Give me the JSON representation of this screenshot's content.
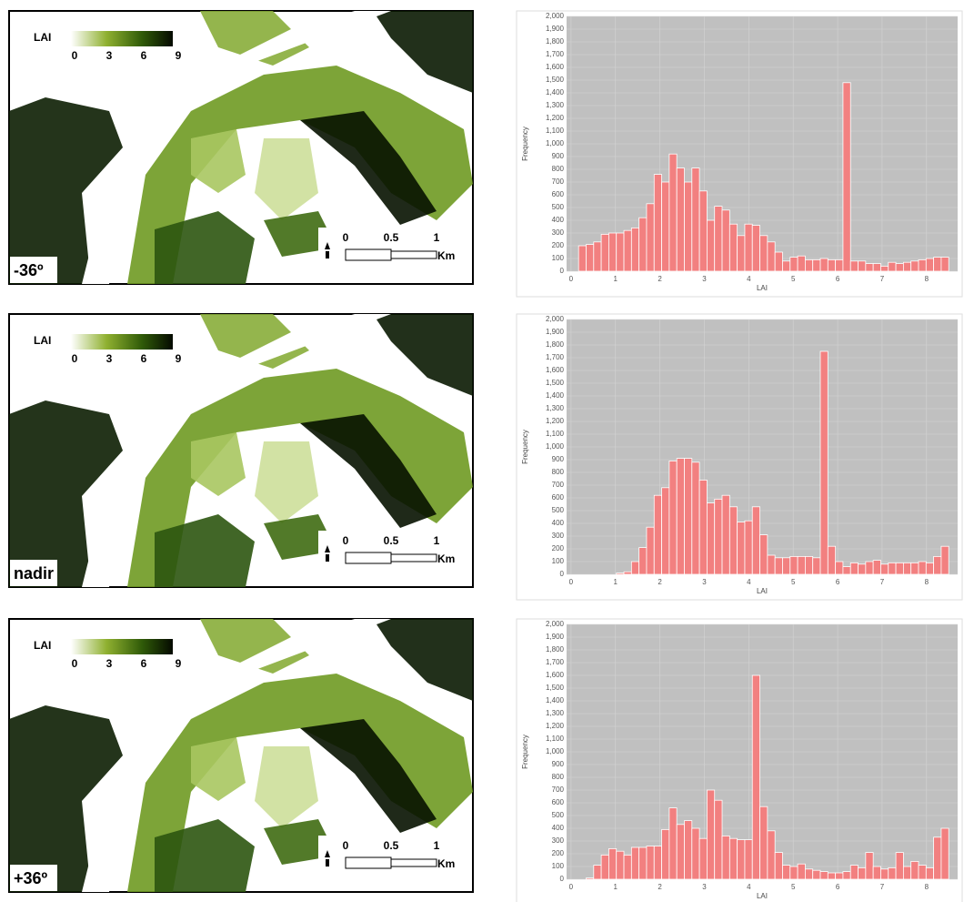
{
  "maps": {
    "legend_title": "LAI",
    "legend_ticks": [
      0,
      3,
      6,
      9
    ],
    "scale_ticks": [
      0,
      0.5,
      1
    ],
    "scale_unit": "Km",
    "labels": [
      "-36º",
      "nadir",
      "+36º"
    ]
  },
  "chart_data": [
    {
      "type": "histogram",
      "xlabel": "LAI",
      "ylabel": "Frequency",
      "color": "#f28080",
      "grid": true,
      "xlim": [
        -0.1,
        8.7
      ],
      "ylim": [
        0,
        2000
      ],
      "xticks": [
        0,
        1,
        2,
        3,
        4,
        5,
        6,
        7,
        8
      ],
      "yticks": [
        0,
        100,
        200,
        300,
        400,
        500,
        600,
        700,
        800,
        900,
        {
          "value": 1000,
          "label": "1,000"
        },
        {
          "value": 1100,
          "label": "1,100"
        },
        {
          "value": 1200,
          "label": "1,200"
        },
        {
          "value": 1300,
          "label": "1,300"
        },
        {
          "value": 1400,
          "label": "1,400"
        },
        {
          "value": 1500,
          "label": "1,500"
        },
        {
          "value": 1600,
          "label": "1,600"
        },
        {
          "value": 1700,
          "label": "1,700"
        },
        {
          "value": 1800,
          "label": "1,800"
        },
        {
          "value": 1900,
          "label": "1,900"
        },
        {
          "value": 2000,
          "label": "2,000"
        }
      ],
      "bins": [
        0,
        0.17,
        0.34,
        0.51,
        0.68,
        0.85,
        1.02,
        1.19,
        1.36,
        1.53,
        1.7,
        1.87,
        2.04,
        2.21,
        2.38,
        2.55,
        2.72,
        2.89,
        3.06,
        3.23,
        3.4,
        3.57,
        3.74,
        3.91,
        4.08,
        4.25,
        4.42,
        4.59,
        4.76,
        4.93,
        5.1,
        5.27,
        5.44,
        5.61,
        5.78,
        5.95,
        6.12,
        6.29,
        6.46,
        6.63,
        6.8,
        6.97,
        7.14,
        7.31,
        7.48,
        7.65,
        7.82,
        7.99,
        8.16,
        8.33,
        8.5
      ],
      "values": [
        0,
        200,
        210,
        230,
        290,
        300,
        300,
        320,
        340,
        420,
        530,
        760,
        700,
        920,
        810,
        700,
        810,
        630,
        400,
        510,
        480,
        370,
        280,
        370,
        360,
        280,
        230,
        150,
        80,
        110,
        120,
        90,
        90,
        100,
        90,
        90,
        1480,
        80,
        80,
        60,
        60,
        40,
        70,
        60,
        70,
        80,
        90,
        100,
        110,
        110
      ]
    },
    {
      "type": "histogram",
      "xlabel": "LAI",
      "ylabel": "Frequency",
      "color": "#f28080",
      "grid": true,
      "xlim": [
        -0.1,
        8.7
      ],
      "ylim": [
        0,
        2000
      ],
      "xticks": [
        0,
        1,
        2,
        3,
        4,
        5,
        6,
        7,
        8
      ],
      "yticks": [
        0,
        100,
        200,
        300,
        400,
        500,
        600,
        700,
        800,
        900,
        {
          "value": 1000,
          "label": "1,000"
        },
        {
          "value": 1100,
          "label": "1,100"
        },
        {
          "value": 1200,
          "label": "1,200"
        },
        {
          "value": 1300,
          "label": "1,300"
        },
        {
          "value": 1400,
          "label": "1,400"
        },
        {
          "value": 1500,
          "label": "1,500"
        },
        {
          "value": 1600,
          "label": "1,600"
        },
        {
          "value": 1700,
          "label": "1,700"
        },
        {
          "value": 1800,
          "label": "1,800"
        },
        {
          "value": 1900,
          "label": "1,900"
        },
        {
          "value": 2000,
          "label": "2,000"
        }
      ],
      "bins": [
        0,
        0.17,
        0.34,
        0.51,
        0.68,
        0.85,
        1.02,
        1.19,
        1.36,
        1.53,
        1.7,
        1.87,
        2.04,
        2.21,
        2.38,
        2.55,
        2.72,
        2.89,
        3.06,
        3.23,
        3.4,
        3.57,
        3.74,
        3.91,
        4.08,
        4.25,
        4.42,
        4.59,
        4.76,
        4.93,
        5.1,
        5.27,
        5.44,
        5.61,
        5.78,
        5.95,
        6.12,
        6.29,
        6.46,
        6.63,
        6.8,
        6.97,
        7.14,
        7.31,
        7.48,
        7.65,
        7.82,
        7.99,
        8.16,
        8.33,
        8.5
      ],
      "values": [
        0,
        0,
        0,
        0,
        0,
        0,
        10,
        20,
        100,
        210,
        370,
        620,
        680,
        890,
        910,
        910,
        880,
        740,
        560,
        590,
        620,
        530,
        410,
        420,
        530,
        310,
        150,
        130,
        130,
        140,
        140,
        140,
        130,
        1750,
        220,
        100,
        60,
        90,
        80,
        100,
        110,
        80,
        90,
        90,
        90,
        90,
        100,
        90,
        140,
        220
      ]
    },
    {
      "type": "histogram",
      "xlabel": "LAI",
      "ylabel": "Frequency",
      "color": "#f28080",
      "grid": true,
      "xlim": [
        -0.1,
        8.7
      ],
      "ylim": [
        0,
        2000
      ],
      "xticks": [
        0,
        1,
        2,
        3,
        4,
        5,
        6,
        7,
        8
      ],
      "yticks": [
        0,
        100,
        200,
        300,
        400,
        500,
        600,
        700,
        800,
        900,
        {
          "value": 1000,
          "label": "1,000"
        },
        {
          "value": 1100,
          "label": "1,100"
        },
        {
          "value": 1200,
          "label": "1,200"
        },
        {
          "value": 1300,
          "label": "1,300"
        },
        {
          "value": 1400,
          "label": "1,400"
        },
        {
          "value": 1500,
          "label": "1,500"
        },
        {
          "value": 1600,
          "label": "1,600"
        },
        {
          "value": 1700,
          "label": "1,700"
        },
        {
          "value": 1800,
          "label": "1,800"
        },
        {
          "value": 1900,
          "label": "1,900"
        },
        {
          "value": 2000,
          "label": "2,000"
        }
      ],
      "bins": [
        0,
        0.17,
        0.34,
        0.51,
        0.68,
        0.85,
        1.02,
        1.19,
        1.36,
        1.53,
        1.7,
        1.87,
        2.04,
        2.21,
        2.38,
        2.55,
        2.72,
        2.89,
        3.06,
        3.23,
        3.4,
        3.57,
        3.74,
        3.91,
        4.08,
        4.25,
        4.42,
        4.59,
        4.76,
        4.93,
        5.1,
        5.27,
        5.44,
        5.61,
        5.78,
        5.95,
        6.12,
        6.29,
        6.46,
        6.63,
        6.8,
        6.97,
        7.14,
        7.31,
        7.48,
        7.65,
        7.82,
        7.99,
        8.16,
        8.33,
        8.5
      ],
      "values": [
        0,
        0,
        10,
        110,
        190,
        240,
        220,
        190,
        250,
        250,
        260,
        260,
        390,
        560,
        430,
        460,
        400,
        320,
        700,
        620,
        340,
        320,
        310,
        310,
        1600,
        570,
        380,
        210,
        110,
        100,
        120,
        80,
        70,
        60,
        50,
        50,
        60,
        110,
        90,
        210,
        100,
        80,
        90,
        210,
        100,
        140,
        110,
        90,
        330,
        400
      ]
    }
  ]
}
